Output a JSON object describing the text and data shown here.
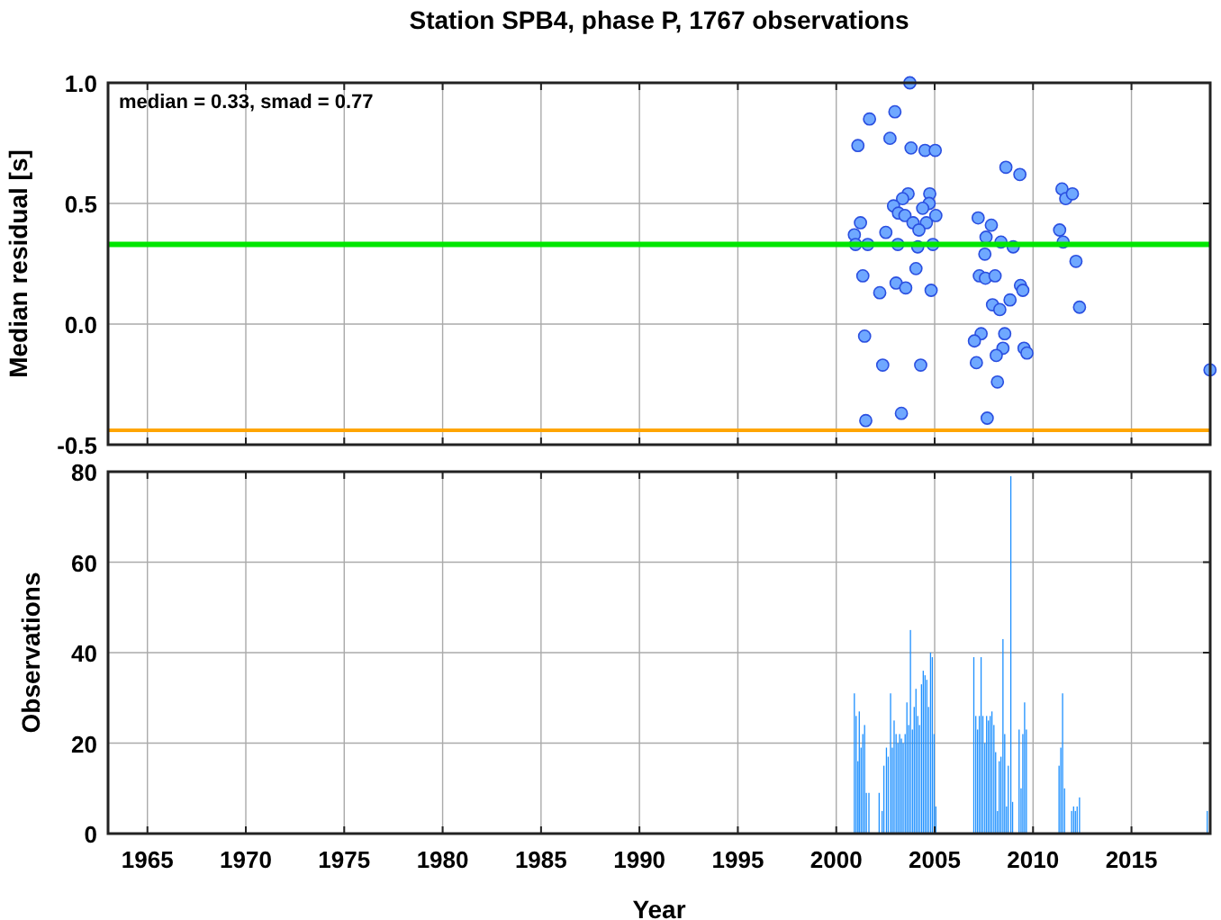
{
  "chart_data": [
    {
      "type": "scatter",
      "title": "Station SPB4, phase P, 1767 observations",
      "ylabel": "Median residual [s]",
      "annotations": [
        "median = 0.33, smad = 0.77"
      ],
      "xlim": [
        1963,
        2019
      ],
      "xticks": [
        1965,
        1970,
        1975,
        1980,
        1985,
        1990,
        1995,
        2000,
        2005,
        2010,
        2015
      ],
      "ylim": [
        -0.5,
        1.0
      ],
      "yticks": [
        {
          "value": -0.5,
          "label": "-0.5"
        },
        {
          "value": 0,
          "label": "0.0"
        },
        {
          "value": 0.5,
          "label": "0.5"
        },
        {
          "value": 1,
          "label": "1.0"
        }
      ],
      "tick_labels": "y",
      "grid": true,
      "marker": "circle",
      "ref_lines": [
        {
          "axis": "y",
          "value": 0.33,
          "color": "#00e600"
        },
        {
          "axis": "y",
          "value": -0.44,
          "color": "#ffa500"
        }
      ],
      "series": [
        {
          "color": "#6fa8ff",
          "x": [
            2003.74,
            2001.69,
            2002.98,
            2001.1,
            2002.73,
            2003.8,
            2004.51,
            2005.03,
            2008.62,
            2009.33,
            2011.47,
            2011.66,
            2012.0,
            2003.65,
            2003.37,
            2004.75,
            2002.91,
            2003.16,
            2003.49,
            2004.72,
            2004.39,
            2005.06,
            2003.9,
            2004.58,
            2004.2,
            2001.23,
            2000.92,
            2000.98,
            2002.52,
            2001.6,
            2003.13,
            2004.14,
            2004.91,
            2007.21,
            2007.88,
            2007.61,
            2008.37,
            2008.99,
            2007.55,
            2011.35,
            2011.53,
            2012.18,
            2012.36,
            2004.05,
            2001.35,
            2003.04,
            2003.53,
            2002.21,
            2004.82,
            2007.27,
            2007.58,
            2008.07,
            2009.36,
            2009.48,
            2008.83,
            2007.94,
            2008.31,
            2001.44,
            2007.36,
            2007.02,
            2008.56,
            2008.47,
            2008.13,
            2009.54,
            2009.69,
            2007.12,
            2002.36,
            2004.29,
            2008.19,
            2001.5,
            2003.31,
            2007.67,
            2018.99
          ],
          "values": [
            1.0,
            0.85,
            0.88,
            0.74,
            0.77,
            0.73,
            0.72,
            0.72,
            0.65,
            0.62,
            0.56,
            0.52,
            0.54,
            0.54,
            0.52,
            0.54,
            0.49,
            0.46,
            0.45,
            0.5,
            0.48,
            0.45,
            0.42,
            0.42,
            0.39,
            0.42,
            0.37,
            0.33,
            0.38,
            0.33,
            0.33,
            0.32,
            0.33,
            0.44,
            0.41,
            0.36,
            0.34,
            0.32,
            0.29,
            0.39,
            0.34,
            0.26,
            0.07,
            0.23,
            0.2,
            0.17,
            0.15,
            0.13,
            0.14,
            0.2,
            0.19,
            0.2,
            0.16,
            0.14,
            0.1,
            0.08,
            0.06,
            -0.05,
            -0.04,
            -0.07,
            -0.04,
            -0.1,
            -0.13,
            -0.1,
            -0.12,
            -0.16,
            -0.17,
            -0.17,
            -0.24,
            -0.4,
            -0.37,
            -0.39,
            -0.19
          ]
        }
      ]
    },
    {
      "type": "bar",
      "xlabel": "Year",
      "ylabel": "Observations",
      "xlim": [
        1963,
        2019
      ],
      "xticks": [
        1965,
        1970,
        1975,
        1980,
        1985,
        1990,
        1995,
        2000,
        2005,
        2010,
        2015
      ],
      "ylim": [
        0,
        80
      ],
      "yticks": [
        0,
        20,
        40,
        60,
        80
      ],
      "grid": true,
      "series": [
        {
          "color": "#1e90ff",
          "x": [
            2000.92,
            2001.01,
            2001.1,
            2001.17,
            2001.26,
            2001.35,
            2001.44,
            2001.53,
            2001.66,
            2002.18,
            2002.33,
            2002.42,
            2002.55,
            2002.64,
            2002.76,
            2002.85,
            2002.94,
            2003.04,
            2003.13,
            2003.22,
            2003.31,
            2003.4,
            2003.5,
            2003.59,
            2003.68,
            2003.77,
            2003.87,
            2003.96,
            2004.05,
            2004.14,
            2004.23,
            2004.33,
            2004.42,
            2004.51,
            2004.6,
            2004.69,
            2004.79,
            2004.88,
            2004.97,
            2005.06,
            2006.99,
            2007.09,
            2007.18,
            2007.27,
            2007.36,
            2007.45,
            2007.55,
            2007.64,
            2007.73,
            2007.82,
            2007.91,
            2008.01,
            2008.1,
            2008.19,
            2008.28,
            2008.37,
            2008.47,
            2008.56,
            2008.65,
            2008.74,
            2008.87,
            2008.96,
            2009.29,
            2009.39,
            2009.48,
            2009.57,
            2009.66,
            2011.32,
            2011.41,
            2011.5,
            2011.6,
            2011.96,
            2012.06,
            2012.15,
            2012.24,
            2012.36,
            2018.85
          ],
          "values": [
            31,
            26,
            16,
            27,
            19,
            22,
            24,
            9,
            9,
            9,
            5,
            15,
            19,
            17,
            31,
            19,
            25,
            22,
            20,
            22,
            21,
            20,
            22,
            29,
            24,
            45,
            23,
            28,
            32,
            26,
            24,
            33,
            36,
            35,
            34,
            28,
            40,
            39,
            22,
            6,
            39,
            26,
            23,
            26,
            39,
            26,
            20,
            26,
            25,
            26,
            27,
            24,
            18,
            5,
            16,
            17,
            43,
            22,
            6,
            15,
            79,
            7,
            23,
            10,
            22,
            29,
            23,
            15,
            19,
            31,
            10,
            5,
            6,
            5,
            6,
            8,
            5
          ]
        }
      ]
    }
  ]
}
